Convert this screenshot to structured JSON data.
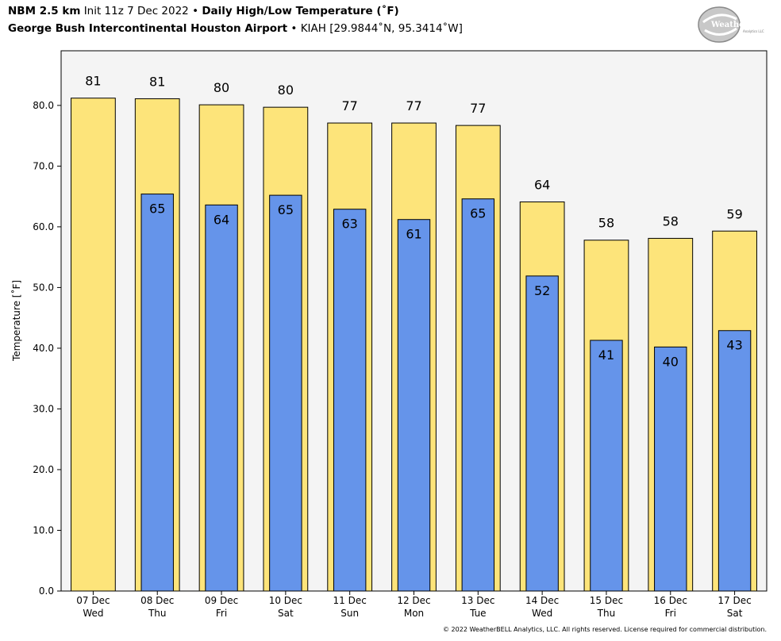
{
  "header": {
    "model": "NBM 2.5 km",
    "init": "Init 11z 7 Dec 2022",
    "sep": "•",
    "product": "Daily High/Low Temperature (˚F)",
    "station": "George Bush Intercontinental Houston Airport",
    "coords": "KIAH [29.9844˚N, 95.3414˚W]"
  },
  "logo": {
    "text": "WeatherBELL",
    "subtext": "Analytics LLC"
  },
  "copyright": "© 2022 WeatherBELL Analytics, LLC. All rights reserved. License required for commercial distribution.",
  "colors": {
    "high": "#fde47a",
    "low": "#6594ea",
    "plot_bg": "#f4f4f4",
    "edge": "#000000"
  },
  "chart_data": {
    "type": "bar",
    "title": "Daily High/Low Temperature (˚F)",
    "ylabel": "Temperature [˚F]",
    "ylim": [
      0,
      89
    ],
    "yticks": [
      "0.0",
      "10.0",
      "20.0",
      "30.0",
      "40.0",
      "50.0",
      "60.0",
      "70.0",
      "80.0"
    ],
    "categories": [
      [
        "07 Dec",
        "Wed"
      ],
      [
        "08 Dec",
        "Thu"
      ],
      [
        "09 Dec",
        "Fri"
      ],
      [
        "10 Dec",
        "Sat"
      ],
      [
        "11 Dec",
        "Sun"
      ],
      [
        "12 Dec",
        "Mon"
      ],
      [
        "13 Dec",
        "Tue"
      ],
      [
        "14 Dec",
        "Wed"
      ],
      [
        "15 Dec",
        "Thu"
      ],
      [
        "16 Dec",
        "Fri"
      ],
      [
        "17 Dec",
        "Sat"
      ]
    ],
    "series": [
      {
        "key": "high",
        "values": [
          81.2,
          81.1,
          80.1,
          79.7,
          77.1,
          77.1,
          76.7,
          64.1,
          57.8,
          58.1,
          59.3
        ],
        "labels": [
          "81",
          "81",
          "80",
          "80",
          "77",
          "77",
          "77",
          "64",
          "58",
          "58",
          "59"
        ]
      },
      {
        "key": "low",
        "values": [
          null,
          65.4,
          63.6,
          65.2,
          62.9,
          61.2,
          64.6,
          51.9,
          41.3,
          40.2,
          42.9
        ],
        "labels": [
          null,
          "65",
          "64",
          "65",
          "63",
          "61",
          "65",
          "52",
          "41",
          "40",
          "43"
        ]
      }
    ],
    "grid": false
  }
}
